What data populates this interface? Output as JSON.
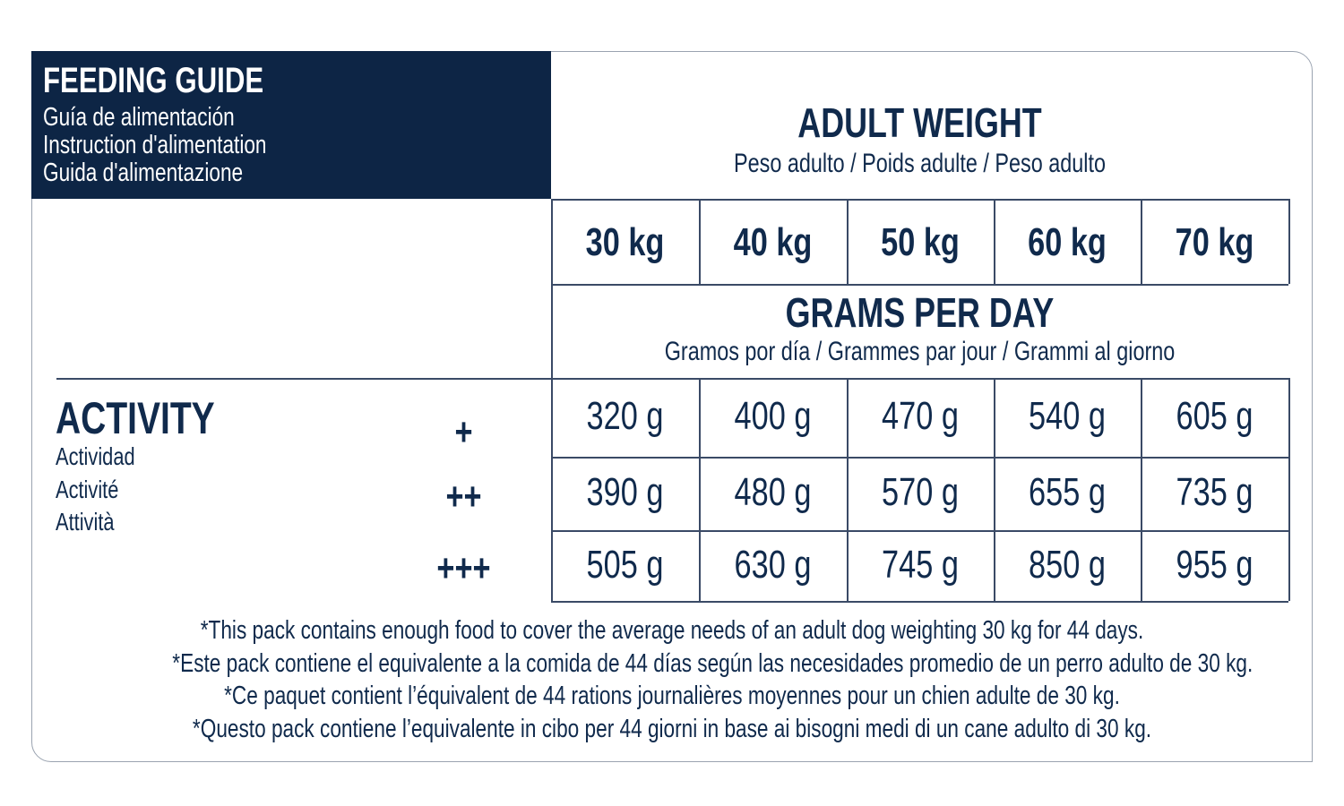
{
  "header": {
    "title": "FEEDING GUIDE",
    "lines": [
      "Guía de alimentación",
      "Instruction d'alimentation",
      "Guida d'alimentazione"
    ]
  },
  "adult_weight": {
    "title": "ADULT WEIGHT",
    "subtitle": "Peso adulto / Poids adulte / Peso adulto"
  },
  "weights": [
    "30 kg",
    "40 kg",
    "50 kg",
    "60 kg",
    "70 kg"
  ],
  "grams_per_day": {
    "title": "GRAMS PER DAY",
    "subtitle": "Gramos por día / Grammes par jour / Grammi al giorno"
  },
  "activity": {
    "title": "ACTIVITY",
    "lines": [
      "Actividad",
      "Activité",
      "Attività"
    ]
  },
  "rows": [
    {
      "level": "+",
      "values": [
        "320 g",
        "400 g",
        "470 g",
        "540 g",
        "605 g"
      ]
    },
    {
      "level": "++",
      "values": [
        "390 g",
        "480 g",
        "570 g",
        "655 g",
        "735 g"
      ]
    },
    {
      "level": "+++",
      "values": [
        "505 g",
        "630 g",
        "745 g",
        "850 g",
        "955 g"
      ]
    }
  ],
  "notes": [
    "*This pack contains enough food to cover the average needs of an adult dog weighting 30 kg for 44 days.",
    "*Este pack contiene el equivalente a la comida de 44 días según las necesidades promedio de un perro adulto de 30 kg.",
    "*Ce paquet contient l’équivalent de 44 rations journalières moyennes pour un chien adulte de 30 kg.",
    "*Questo pack contiene l’equivalente in cibo per 44 giorni in base ai bisogni medi di un cane adulto di 30 kg."
  ]
}
